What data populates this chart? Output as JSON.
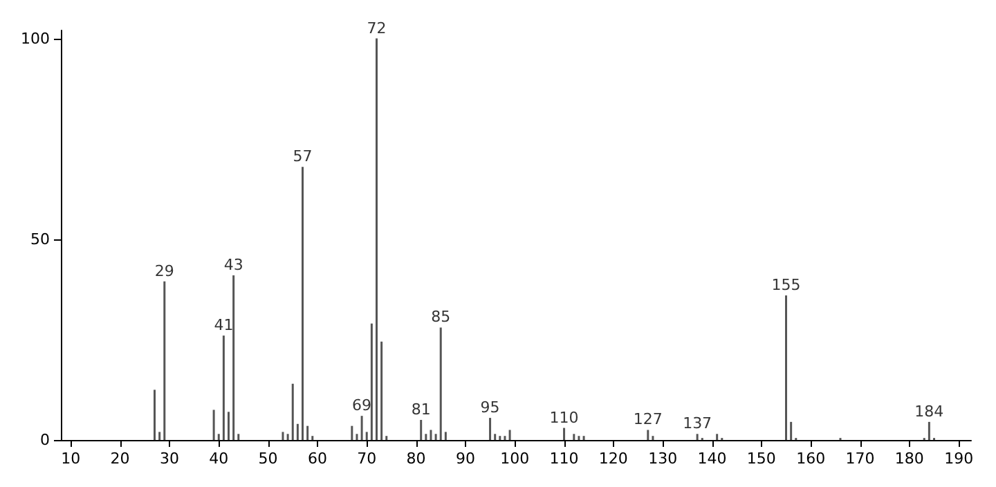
{
  "chart_data": {
    "type": "bar",
    "x": [
      27,
      28,
      29,
      39,
      40,
      41,
      42,
      43,
      44,
      53,
      54,
      55,
      56,
      57,
      58,
      59,
      67,
      68,
      69,
      70,
      71,
      72,
      73,
      74,
      81,
      82,
      83,
      84,
      85,
      86,
      95,
      96,
      97,
      98,
      99,
      110,
      112,
      113,
      114,
      127,
      128,
      137,
      138,
      141,
      142,
      155,
      156,
      157,
      166,
      183,
      184,
      185
    ],
    "values": [
      12.5,
      2,
      39.5,
      7.5,
      1.5,
      26,
      7,
      41,
      1.5,
      2,
      1.5,
      14,
      4,
      68,
      3.5,
      1,
      3.5,
      1.5,
      6,
      2,
      29,
      100,
      24.5,
      1,
      5,
      1.5,
      2.5,
      1.5,
      28,
      2,
      5.5,
      1.5,
      1,
      1,
      2.5,
      3,
      1.5,
      1,
      1,
      2.5,
      1,
      1.5,
      0.5,
      1.5,
      0.5,
      36,
      4.5,
      0.5,
      0.5,
      0.5,
      4.5,
      0.5
    ],
    "annotations": [
      {
        "text": "29",
        "x": 29,
        "y": 39.5
      },
      {
        "text": "41",
        "x": 41,
        "y": 26
      },
      {
        "text": "43",
        "x": 43,
        "y": 41
      },
      {
        "text": "57",
        "x": 57,
        "y": 68
      },
      {
        "text": "69",
        "x": 69,
        "y": 6
      },
      {
        "text": "72",
        "x": 72,
        "y": 100
      },
      {
        "text": "81",
        "x": 81,
        "y": 5
      },
      {
        "text": "85",
        "x": 85,
        "y": 28
      },
      {
        "text": "95",
        "x": 95,
        "y": 5.5
      },
      {
        "text": "110",
        "x": 110,
        "y": 3
      },
      {
        "text": "127",
        "x": 127,
        "y": 2.5
      },
      {
        "text": "137",
        "x": 137,
        "y": 1.5
      },
      {
        "text": "155",
        "x": 155,
        "y": 36
      },
      {
        "text": "184",
        "x": 184,
        "y": 4.5
      }
    ],
    "color": "#555555",
    "xlim": [
      8,
      192.5
    ],
    "xticks": [
      10,
      20,
      30,
      40,
      50,
      60,
      70,
      80,
      90,
      100,
      110,
      120,
      130,
      140,
      150,
      160,
      170,
      180,
      190
    ],
    "ylim": [
      0,
      102
    ],
    "yticks": [
      0,
      50,
      100
    ],
    "grid": false
  }
}
